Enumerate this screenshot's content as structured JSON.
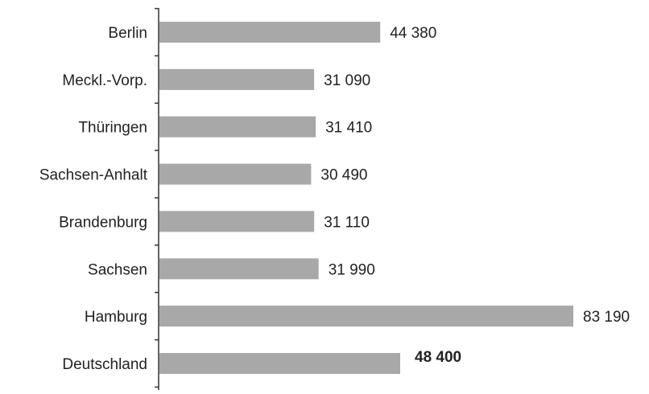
{
  "chart_data": {
    "type": "bar",
    "orientation": "horizontal",
    "categories": [
      "Berlin",
      "Meckl.-Vorp.",
      "Thüringen",
      "Sachsen-Anhalt",
      "Brandenburg",
      "Sachsen",
      "Hamburg",
      "Deutschland"
    ],
    "values": [
      44380,
      31090,
      31410,
      30490,
      31110,
      31990,
      83190,
      48400
    ],
    "value_labels": [
      "44 380",
      "31 090",
      "31 410",
      "30 490",
      "31 110",
      "31 990",
      "83 190",
      "48 400"
    ],
    "highlighted": [
      "Deutschland"
    ],
    "bar_color": "#a8a8a8",
    "axis_color": "#333333",
    "text_color": "#222222",
    "xlim": [
      0,
      90000
    ],
    "grid": false,
    "legend": "none",
    "title": "",
    "xlabel": "",
    "ylabel": ""
  }
}
